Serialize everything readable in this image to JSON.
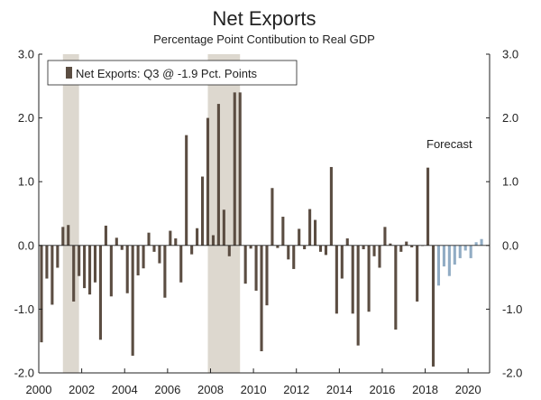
{
  "chart_data": {
    "type": "bar",
    "title": "Net Exports",
    "subtitle": "Percentage Point Contibution to Real GDP",
    "legend": {
      "label": "Net Exports: Q3 @ -1.9 Pct. Points",
      "placement": "top-left"
    },
    "annotation": "Forecast",
    "ylim": [
      -2.0,
      3.0
    ],
    "y_ticks": [
      "3.0",
      "2.0",
      "1.0",
      "0.0",
      "-1.0",
      "-2.0"
    ],
    "y_tick_values": [
      3.0,
      2.0,
      1.0,
      0.0,
      -1.0,
      -2.0
    ],
    "x_ticks": [
      "2000",
      "2002",
      "2004",
      "2006",
      "2008",
      "2010",
      "2012",
      "2014",
      "2016",
      "2018",
      "2020"
    ],
    "x_tick_years": [
      2000,
      2002,
      2004,
      2006,
      2008,
      2010,
      2012,
      2014,
      2016,
      2018,
      2020
    ],
    "x_start": 2000,
    "x_end": 2021,
    "recessions": [
      [
        2001.125,
        2001.875
      ],
      [
        2007.875,
        2009.375
      ]
    ],
    "grid": false,
    "colors": {
      "actual": "#5b4d42",
      "forecast": "#91acc4",
      "recession": "#ddd8cf",
      "axis": "#222222"
    },
    "series": [
      {
        "name": "Net Exports",
        "kind": "actual",
        "values": [
          -1.52,
          -0.52,
          -0.93,
          -0.35,
          0.29,
          0.32,
          -0.88,
          -0.48,
          -0.67,
          -0.77,
          -0.58,
          -1.48,
          0.31,
          -0.8,
          0.12,
          -0.07,
          -0.75,
          -1.73,
          -0.47,
          -0.36,
          0.2,
          -0.1,
          -0.28,
          -0.82,
          0.23,
          0.11,
          -0.58,
          1.73,
          -0.14,
          0.27,
          1.08,
          2.0,
          0.16,
          2.22,
          0.56,
          -0.17,
          2.4,
          2.4,
          -0.6,
          -0.05,
          -0.71,
          -1.66,
          -0.94,
          0.9,
          -0.04,
          0.45,
          -0.22,
          -0.37,
          0.26,
          -0.06,
          0.57,
          0.4,
          -0.1,
          -0.15,
          1.23,
          -1.07,
          -0.52,
          0.11,
          -1.07,
          -1.57,
          -0.06,
          -1.04,
          -0.17,
          -0.35,
          0.29,
          0.03,
          -1.32,
          -0.1,
          0.06,
          -0.03,
          -0.88,
          0.0,
          1.22,
          -1.9
        ]
      },
      {
        "name": "Forecast",
        "kind": "forecast",
        "values": [
          -0.63,
          -0.33,
          -0.48,
          -0.3,
          -0.2,
          -0.08,
          -0.2,
          0.05,
          0.1
        ]
      }
    ]
  }
}
